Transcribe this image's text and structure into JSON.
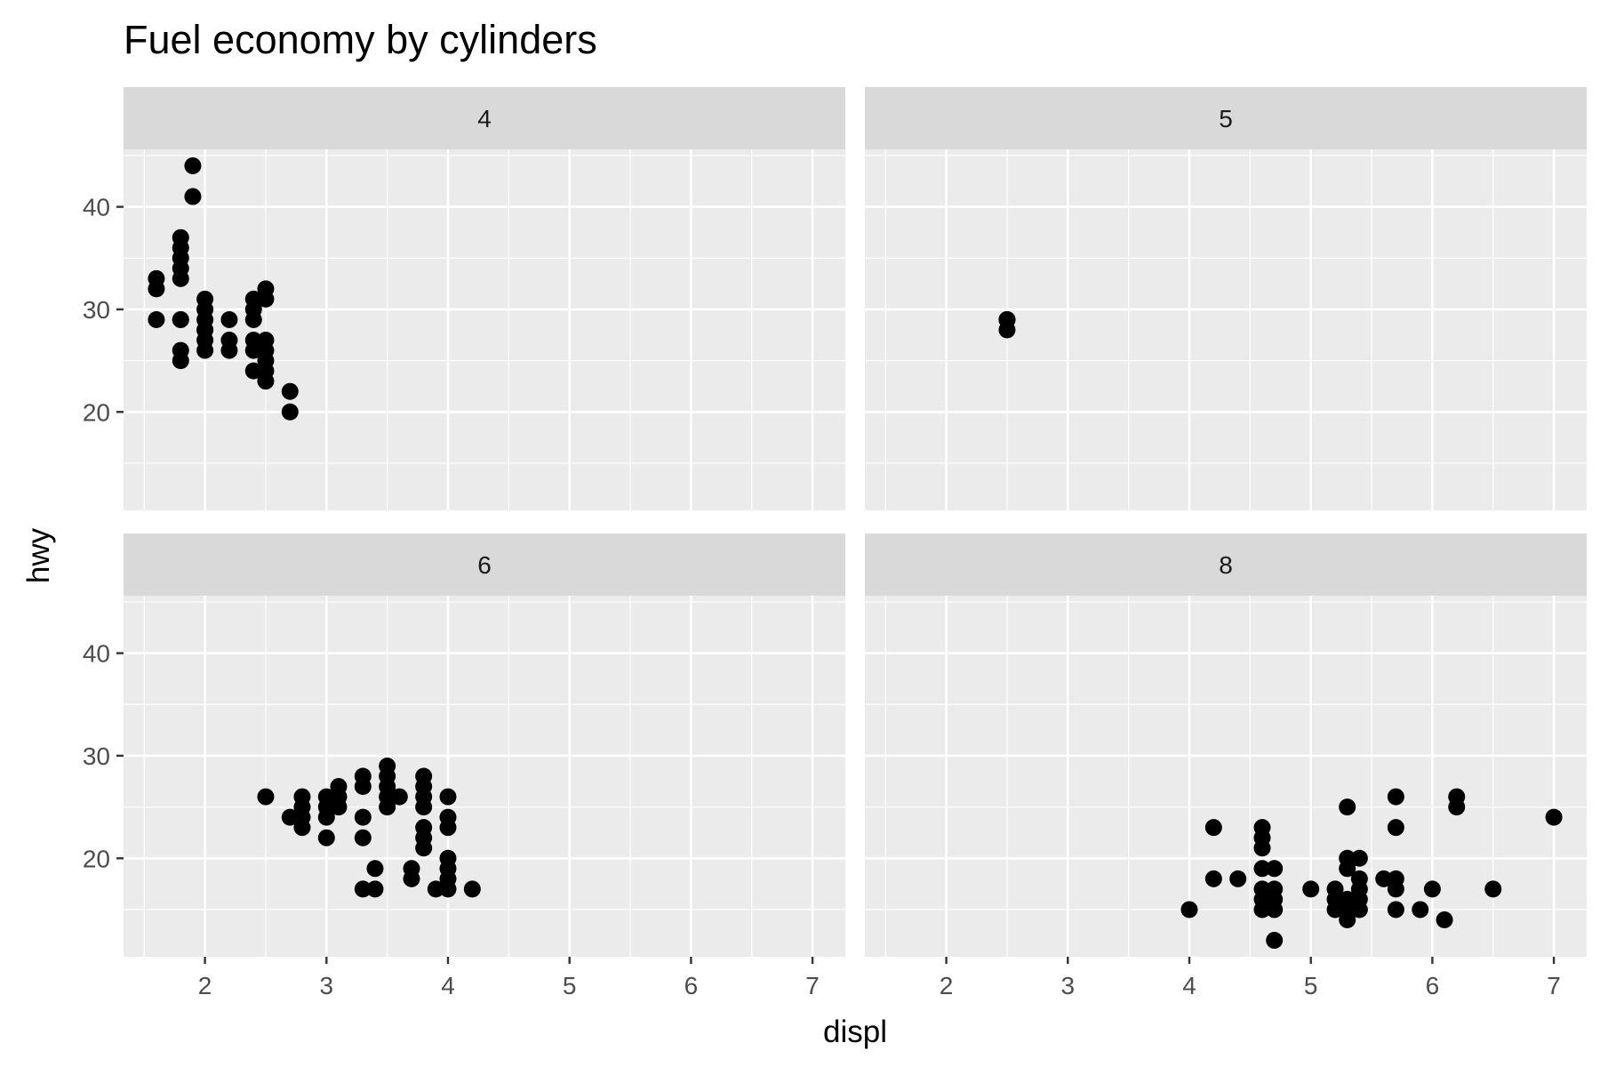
{
  "chart_data": {
    "type": "scatter",
    "title": "Fuel economy by cylinders",
    "xlabel": "displ",
    "ylabel": "hwy",
    "xlim": [
      1.33,
      7.27
    ],
    "ylim": [
      10.4,
      45.6
    ],
    "x_ticks": [
      2,
      3,
      4,
      5,
      6,
      7
    ],
    "y_ticks": [
      20,
      30,
      40
    ],
    "grid": true,
    "facet_by": "cyl",
    "facets": [
      {
        "label": "4",
        "points": [
          [
            1.8,
            29
          ],
          [
            1.8,
            29
          ],
          [
            2.0,
            31
          ],
          [
            2.0,
            30
          ],
          [
            1.8,
            26
          ],
          [
            1.8,
            25
          ],
          [
            2.0,
            28
          ],
          [
            2.4,
            30
          ],
          [
            2.5,
            26
          ],
          [
            2.5,
            27
          ],
          [
            2.5,
            25
          ],
          [
            2.4,
            27
          ],
          [
            2.4,
            24
          ],
          [
            1.9,
            44
          ],
          [
            1.9,
            41
          ],
          [
            1.8,
            37
          ],
          [
            1.8,
            36
          ],
          [
            1.8,
            35
          ],
          [
            1.8,
            34
          ],
          [
            1.8,
            33
          ],
          [
            1.6,
            33
          ],
          [
            1.6,
            32
          ],
          [
            1.6,
            29
          ],
          [
            2.0,
            29
          ],
          [
            2.0,
            28
          ],
          [
            2.0,
            27
          ],
          [
            2.0,
            26
          ],
          [
            2.2,
            29
          ],
          [
            2.2,
            27
          ],
          [
            2.2,
            26
          ],
          [
            2.4,
            31
          ],
          [
            2.4,
            29
          ],
          [
            2.4,
            26
          ],
          [
            2.5,
            32
          ],
          [
            2.5,
            31
          ],
          [
            2.5,
            24
          ],
          [
            2.5,
            23
          ],
          [
            2.7,
            22
          ],
          [
            2.7,
            20
          ]
        ]
      },
      {
        "label": "5",
        "points": [
          [
            2.5,
            29
          ],
          [
            2.5,
            29
          ],
          [
            2.5,
            28
          ],
          [
            2.5,
            29
          ]
        ]
      },
      {
        "label": "6",
        "points": [
          [
            2.5,
            26
          ],
          [
            2.7,
            24
          ],
          [
            2.8,
            26
          ],
          [
            2.8,
            25
          ],
          [
            2.8,
            24
          ],
          [
            2.8,
            23
          ],
          [
            3.0,
            26
          ],
          [
            3.0,
            25
          ],
          [
            3.0,
            24
          ],
          [
            3.0,
            22
          ],
          [
            3.1,
            27
          ],
          [
            3.1,
            26
          ],
          [
            3.1,
            25
          ],
          [
            3.3,
            28
          ],
          [
            3.3,
            27
          ],
          [
            3.3,
            24
          ],
          [
            3.3,
            22
          ],
          [
            3.3,
            17
          ],
          [
            3.4,
            19
          ],
          [
            3.4,
            17
          ],
          [
            3.5,
            29
          ],
          [
            3.5,
            28
          ],
          [
            3.5,
            27
          ],
          [
            3.5,
            26
          ],
          [
            3.5,
            25
          ],
          [
            3.6,
            26
          ],
          [
            3.7,
            19
          ],
          [
            3.7,
            18
          ],
          [
            3.8,
            28
          ],
          [
            3.8,
            27
          ],
          [
            3.8,
            26
          ],
          [
            3.8,
            25
          ],
          [
            3.8,
            23
          ],
          [
            3.8,
            22
          ],
          [
            3.8,
            21
          ],
          [
            3.9,
            17
          ],
          [
            4.0,
            26
          ],
          [
            4.0,
            24
          ],
          [
            4.0,
            23
          ],
          [
            4.0,
            20
          ],
          [
            4.0,
            19
          ],
          [
            4.0,
            18
          ],
          [
            4.0,
            17
          ],
          [
            4.2,
            17
          ]
        ]
      },
      {
        "label": "8",
        "points": [
          [
            4.0,
            15
          ],
          [
            4.2,
            23
          ],
          [
            4.2,
            18
          ],
          [
            4.4,
            18
          ],
          [
            4.6,
            23
          ],
          [
            4.6,
            22
          ],
          [
            4.6,
            21
          ],
          [
            4.6,
            19
          ],
          [
            4.6,
            17
          ],
          [
            4.6,
            16
          ],
          [
            4.6,
            15
          ],
          [
            4.7,
            19
          ],
          [
            4.7,
            17
          ],
          [
            4.7,
            16
          ],
          [
            4.7,
            15
          ],
          [
            4.7,
            12
          ],
          [
            5.0,
            17
          ],
          [
            5.2,
            17
          ],
          [
            5.2,
            16
          ],
          [
            5.2,
            15
          ],
          [
            5.3,
            25
          ],
          [
            5.3,
            20
          ],
          [
            5.3,
            19
          ],
          [
            5.3,
            16
          ],
          [
            5.3,
            15
          ],
          [
            5.3,
            14
          ],
          [
            5.4,
            20
          ],
          [
            5.4,
            18
          ],
          [
            5.4,
            17
          ],
          [
            5.4,
            16
          ],
          [
            5.4,
            15
          ],
          [
            5.6,
            18
          ],
          [
            5.7,
            26
          ],
          [
            5.7,
            23
          ],
          [
            5.7,
            18
          ],
          [
            5.7,
            17
          ],
          [
            5.7,
            15
          ],
          [
            5.9,
            15
          ],
          [
            6.0,
            17
          ],
          [
            6.1,
            14
          ],
          [
            6.2,
            26
          ],
          [
            6.2,
            25
          ],
          [
            6.5,
            17
          ],
          [
            7.0,
            24
          ]
        ]
      }
    ]
  },
  "colors": {
    "panel_background": "#ebebeb",
    "strip_background": "#d9d9d9",
    "grid_line": "#ffffff",
    "point": "#000000",
    "tick": "#333333"
  }
}
